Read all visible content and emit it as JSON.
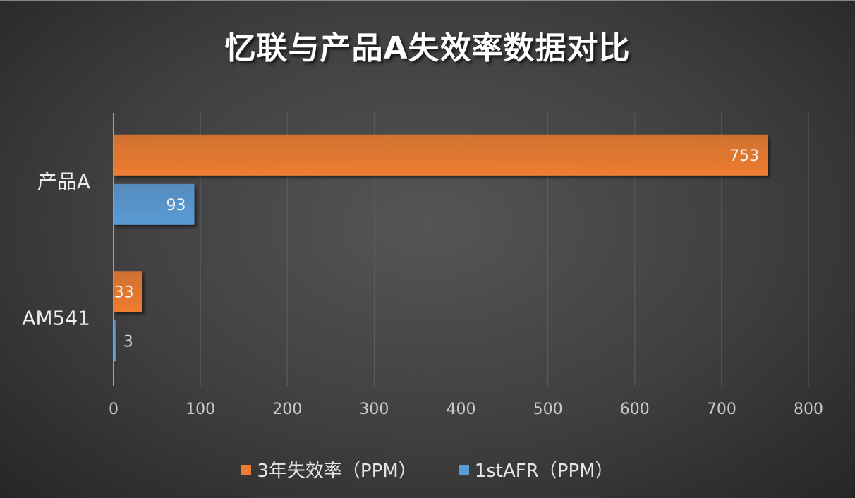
{
  "chart_data": {
    "type": "bar",
    "orientation": "horizontal",
    "title": "忆联与产品A失效率数据对比",
    "categories": [
      "产品A",
      "AM541"
    ],
    "series": [
      {
        "name": "3年失效率（PPM）",
        "values": [
          753,
          33
        ],
        "color": "#ed7d31"
      },
      {
        "name": "1stAFR（PPM）",
        "values": [
          93,
          3
        ],
        "color": "#5b9bd5"
      }
    ],
    "xlim": [
      0,
      800
    ],
    "xticks": [
      0,
      100,
      200,
      300,
      400,
      500,
      600,
      700,
      800
    ],
    "grid": true,
    "legend": "bottom",
    "xlabel": "",
    "ylabel": ""
  }
}
